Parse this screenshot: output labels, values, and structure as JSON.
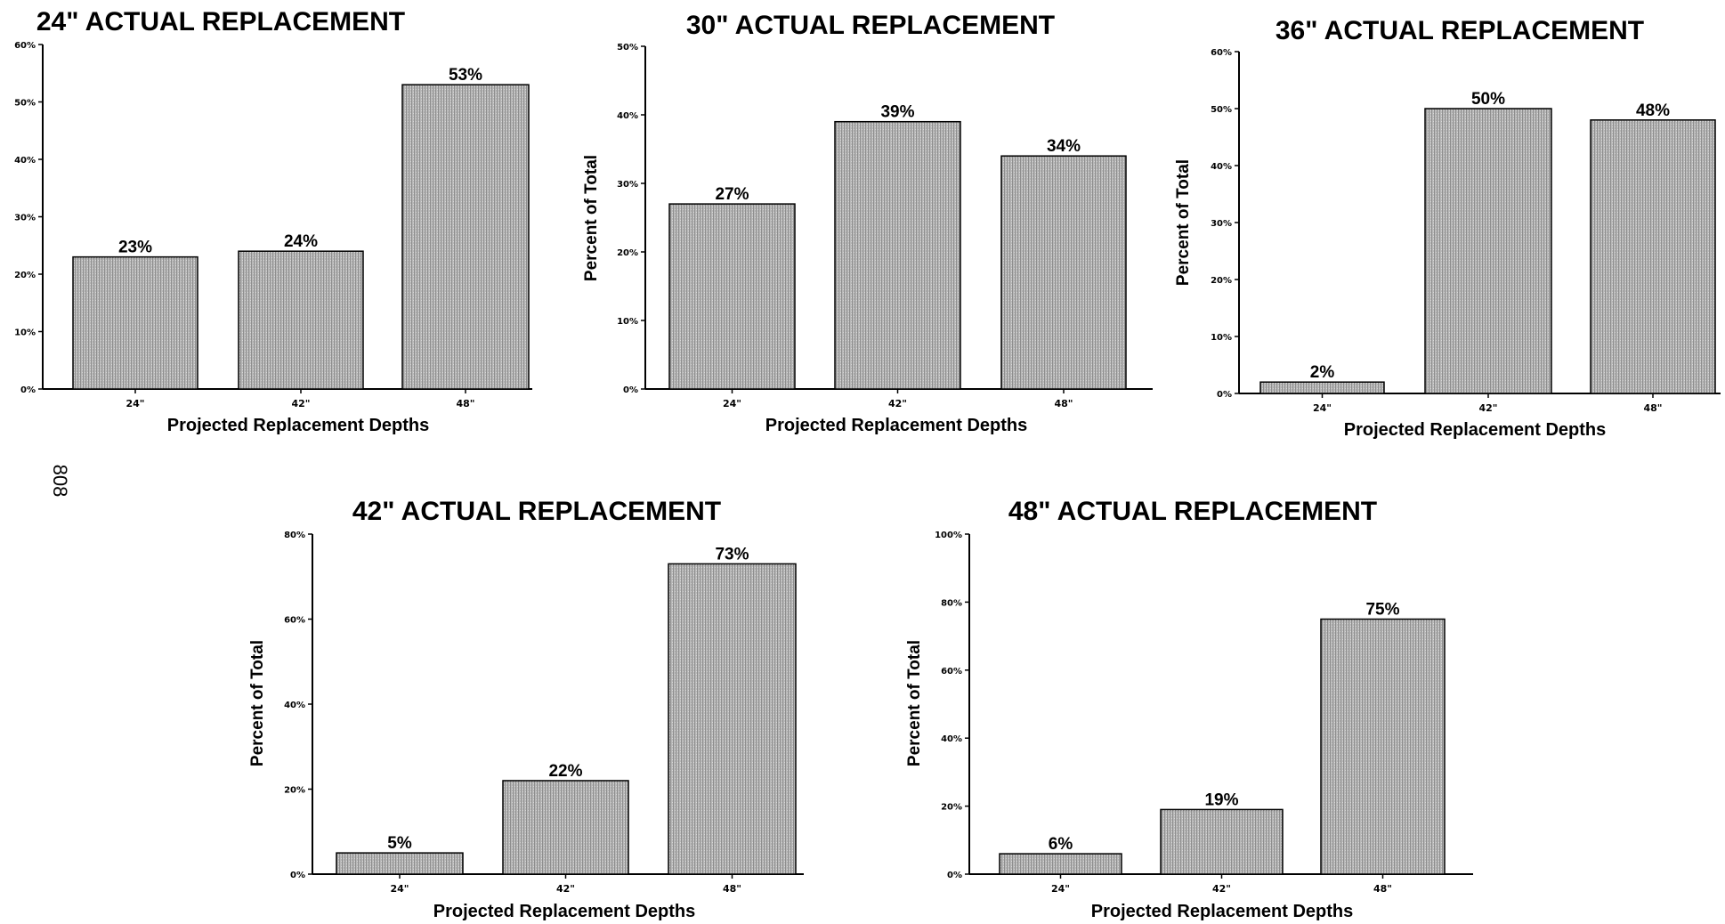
{
  "page_number": "808",
  "chart_data": [
    {
      "type": "bar",
      "title": "24\" ACTUAL REPLACEMENT",
      "xlabel": "Projected Replacement Depths",
      "ylabel": "",
      "categories": [
        "24\"",
        "42\"",
        "48\""
      ],
      "values": [
        23,
        24,
        53
      ],
      "data_labels": [
        "23%",
        "24%",
        "53%"
      ],
      "ylim": [
        0,
        60
      ],
      "yticks": [
        0,
        10,
        20,
        30,
        40,
        50,
        60
      ],
      "ytick_labels": [
        "0%",
        "10%",
        "20%",
        "30%",
        "40%",
        "50%",
        "60%"
      ],
      "grid": false,
      "bar_color": "#a9a9a9"
    },
    {
      "type": "bar",
      "title": "30\" ACTUAL REPLACEMENT",
      "xlabel": "Projected Replacement Depths",
      "ylabel": "Percent of Total",
      "categories": [
        "24\"",
        "42\"",
        "48\""
      ],
      "values": [
        27,
        39,
        34
      ],
      "data_labels": [
        "27%",
        "39%",
        "34%"
      ],
      "ylim": [
        0,
        50
      ],
      "yticks": [
        0,
        10,
        20,
        30,
        40,
        50
      ],
      "ytick_labels": [
        "0%",
        "10%",
        "20%",
        "30%",
        "40%",
        "50%"
      ],
      "grid": false,
      "bar_color": "#a9a9a9"
    },
    {
      "type": "bar",
      "title": "36\" ACTUAL REPLACEMENT",
      "xlabel": "Projected Replacement Depths",
      "ylabel": "Percent of Total",
      "categories": [
        "24\"",
        "42\"",
        "48\""
      ],
      "values": [
        2,
        50,
        48
      ],
      "data_labels": [
        "2%",
        "50%",
        "48%"
      ],
      "ylim": [
        0,
        60
      ],
      "yticks": [
        0,
        10,
        20,
        30,
        40,
        50,
        60
      ],
      "ytick_labels": [
        "0%",
        "10%",
        "20%",
        "30%",
        "40%",
        "50%",
        "60%"
      ],
      "grid": false,
      "bar_color": "#a9a9a9"
    },
    {
      "type": "bar",
      "title": "42\" ACTUAL REPLACEMENT",
      "xlabel": "Projected Replacement Depths",
      "ylabel": "Percent of Total",
      "categories": [
        "24\"",
        "42\"",
        "48\""
      ],
      "values": [
        5,
        22,
        73
      ],
      "data_labels": [
        "5%",
        "22%",
        "73%"
      ],
      "ylim": [
        0,
        80
      ],
      "yticks": [
        0,
        20,
        40,
        60,
        80
      ],
      "ytick_labels": [
        "0%",
        "20%",
        "40%",
        "60%",
        "80%"
      ],
      "grid": false,
      "bar_color": "#a9a9a9"
    },
    {
      "type": "bar",
      "title": "48\" ACTUAL REPLACEMENT",
      "xlabel": "Projected Replacement Depths",
      "ylabel": "Percent of Total",
      "categories": [
        "24\"",
        "42\"",
        "48\""
      ],
      "values": [
        6,
        19,
        75
      ],
      "data_labels": [
        "6%",
        "19%",
        "75%"
      ],
      "ylim": [
        0,
        100
      ],
      "yticks": [
        0,
        20,
        40,
        60,
        80,
        100
      ],
      "ytick_labels": [
        "0%",
        "20%",
        "40%",
        "60%",
        "80%",
        "100%"
      ],
      "grid": false,
      "bar_color": "#a9a9a9"
    }
  ]
}
